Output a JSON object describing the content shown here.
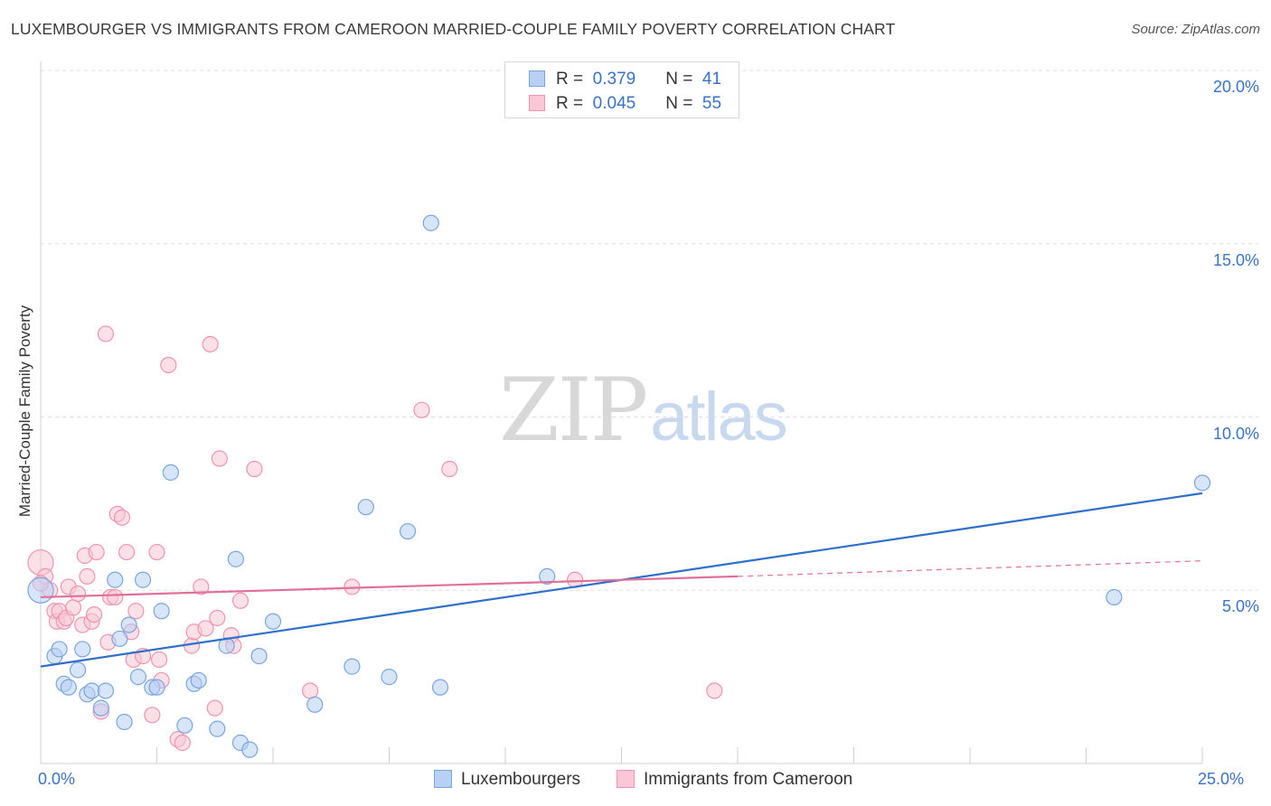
{
  "title": "LUXEMBOURGER VS IMMIGRANTS FROM CAMEROON MARRIED-COUPLE FAMILY POVERTY CORRELATION CHART",
  "source": "Source: ZipAtlas.com",
  "watermark": {
    "zip": "ZIP",
    "atlas": "atlas"
  },
  "legend": {
    "rows": [
      {
        "r_label": "R =",
        "r_value": "0.379",
        "n_label": "N =",
        "n_value": "41"
      },
      {
        "r_label": "R =",
        "r_value": "0.045",
        "n_label": "N =",
        "n_value": "55"
      }
    ]
  },
  "colors": {
    "blue_fill": "#b7d0f4",
    "blue_stroke": "#7aa4e0",
    "blue_line": "#2f6fcc",
    "pink_fill": "#f9c7d6",
    "pink_stroke": "#ee94b1",
    "pink_line": "#e0709a",
    "tick_text": "#3a72c6",
    "grid": "#dddddd"
  },
  "chart_data": {
    "type": "scatter",
    "title": "LUXEMBOURGER VS IMMIGRANTS FROM CAMEROON MARRIED-COUPLE FAMILY POVERTY CORRELATION CHART",
    "xlabel": "",
    "ylabel": "Married-Couple Family Poverty",
    "xlim": [
      0,
      25
    ],
    "ylim": [
      0,
      20
    ],
    "x_tick_labels": [
      "0.0%",
      "25.0%"
    ],
    "y_ticks": [
      5,
      10,
      15,
      20
    ],
    "y_tick_labels": [
      "5.0%",
      "10.0%",
      "15.0%",
      "20.0%"
    ],
    "grid": true,
    "legend_position": "top-center",
    "series": [
      {
        "name": "Luxembourgers",
        "r": 0.379,
        "n": 41,
        "trend": {
          "x": [
            0,
            25
          ],
          "y": [
            2.8,
            7.8
          ]
        },
        "points": [
          [
            0.0,
            5.0
          ],
          [
            0.3,
            3.1
          ],
          [
            0.4,
            3.3
          ],
          [
            0.5,
            2.3
          ],
          [
            0.6,
            2.2
          ],
          [
            0.8,
            2.7
          ],
          [
            0.9,
            3.3
          ],
          [
            1.0,
            2.0
          ],
          [
            1.1,
            2.1
          ],
          [
            1.3,
            1.6
          ],
          [
            1.4,
            2.1
          ],
          [
            1.6,
            5.3
          ],
          [
            1.7,
            3.6
          ],
          [
            1.8,
            1.2
          ],
          [
            1.9,
            4.0
          ],
          [
            2.1,
            2.5
          ],
          [
            2.2,
            5.3
          ],
          [
            2.4,
            2.2
          ],
          [
            2.5,
            2.2
          ],
          [
            2.6,
            4.4
          ],
          [
            2.8,
            8.4
          ],
          [
            3.1,
            1.1
          ],
          [
            3.3,
            2.3
          ],
          [
            3.4,
            2.4
          ],
          [
            3.8,
            1.0
          ],
          [
            4.0,
            3.4
          ],
          [
            4.2,
            5.9
          ],
          [
            4.3,
            0.6
          ],
          [
            4.5,
            0.4
          ],
          [
            4.7,
            3.1
          ],
          [
            5.0,
            4.1
          ],
          [
            5.9,
            1.7
          ],
          [
            6.7,
            2.8
          ],
          [
            7.0,
            7.4
          ],
          [
            7.5,
            2.5
          ],
          [
            7.9,
            6.7
          ],
          [
            8.4,
            15.6
          ],
          [
            8.6,
            2.2
          ],
          [
            10.9,
            5.4
          ],
          [
            23.1,
            4.8
          ],
          [
            25.0,
            8.1
          ]
        ]
      },
      {
        "name": "Immigrants from Cameroon",
        "r": 0.045,
        "n": 55,
        "trend": {
          "x": [
            0,
            15
          ],
          "y": [
            4.8,
            5.4
          ]
        },
        "trend_extension": {
          "x": [
            15,
            25
          ],
          "y": [
            5.4,
            5.85
          ]
        },
        "points": [
          [
            0.0,
            5.8
          ],
          [
            0.1,
            5.4
          ],
          [
            0.2,
            5.0
          ],
          [
            0.3,
            4.4
          ],
          [
            0.35,
            4.1
          ],
          [
            0.4,
            4.4
          ],
          [
            0.5,
            4.1
          ],
          [
            0.55,
            4.2
          ],
          [
            0.6,
            5.1
          ],
          [
            0.7,
            4.5
          ],
          [
            0.8,
            4.9
          ],
          [
            0.9,
            4.0
          ],
          [
            0.95,
            6.0
          ],
          [
            1.0,
            5.4
          ],
          [
            1.1,
            4.1
          ],
          [
            1.15,
            4.3
          ],
          [
            1.2,
            6.1
          ],
          [
            1.3,
            1.5
          ],
          [
            1.4,
            12.4
          ],
          [
            1.45,
            3.5
          ],
          [
            1.5,
            4.8
          ],
          [
            1.6,
            4.8
          ],
          [
            1.65,
            7.2
          ],
          [
            1.75,
            7.1
          ],
          [
            1.85,
            6.1
          ],
          [
            1.95,
            3.8
          ],
          [
            2.0,
            3.0
          ],
          [
            2.05,
            4.4
          ],
          [
            2.2,
            3.1
          ],
          [
            2.4,
            1.4
          ],
          [
            2.5,
            6.1
          ],
          [
            2.55,
            3.0
          ],
          [
            2.6,
            2.4
          ],
          [
            2.75,
            11.5
          ],
          [
            2.95,
            0.7
          ],
          [
            3.05,
            0.6
          ],
          [
            3.25,
            3.4
          ],
          [
            3.3,
            3.8
          ],
          [
            3.45,
            5.1
          ],
          [
            3.55,
            3.9
          ],
          [
            3.65,
            12.1
          ],
          [
            3.75,
            1.6
          ],
          [
            3.8,
            4.2
          ],
          [
            3.85,
            8.8
          ],
          [
            4.1,
            3.7
          ],
          [
            4.15,
            3.4
          ],
          [
            4.3,
            4.7
          ],
          [
            4.6,
            8.5
          ],
          [
            5.8,
            2.1
          ],
          [
            6.7,
            5.1
          ],
          [
            8.2,
            10.2
          ],
          [
            8.8,
            8.5
          ],
          [
            11.5,
            5.3
          ],
          [
            14.5,
            2.1
          ],
          [
            0.0,
            5.2
          ]
        ]
      }
    ]
  }
}
